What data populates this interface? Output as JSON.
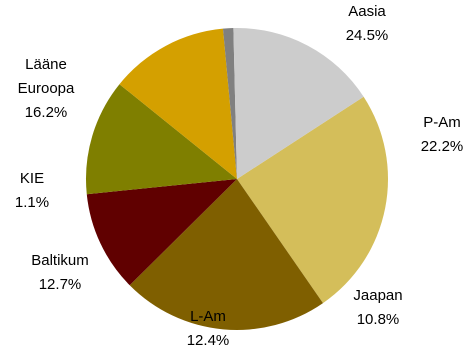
{
  "chart_data": {
    "type": "pie",
    "title": "",
    "start_angle_deg": -33,
    "direction": "clockwise",
    "slices": [
      {
        "label": "Aasia",
        "value_label": "24.5%",
        "value": 24.5,
        "color": "#D4BE5A"
      },
      {
        "label": "P-Am",
        "value_label": "22.2%",
        "value": 22.2,
        "color": "#7F5F00"
      },
      {
        "label": "Jaapan",
        "value_label": "10.8%",
        "value": 10.8,
        "color": "#600000"
      },
      {
        "label": "L-Am",
        "value_label": "12.4%",
        "value": 12.4,
        "color": "#7F7F00"
      },
      {
        "label": "Baltikum",
        "value_label": "12.7%",
        "value": 12.7,
        "color": "#D4A000"
      },
      {
        "label": "KIE",
        "value_label": "1.1%",
        "value": 1.1,
        "color": "#808080"
      },
      {
        "label": [
          "Lääne",
          "Euroopa"
        ],
        "value_label": "16.2%",
        "value": 16.2,
        "color": "#CCCCCC"
      }
    ],
    "legend": "none"
  }
}
